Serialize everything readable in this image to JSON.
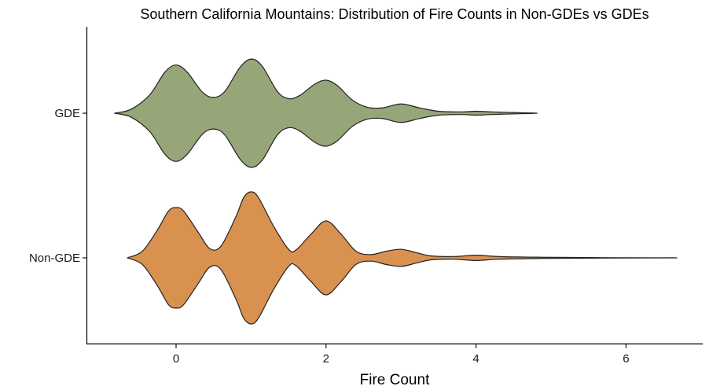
{
  "chart_data": {
    "type": "violin",
    "orientation": "horizontal",
    "title": "Southern California Mountains: Distribution of Fire Counts in Non-GDEs vs GDEs",
    "xlabel": "Fire Count",
    "ylabel": "",
    "xlim": [
      -1.2,
      7.0
    ],
    "x_ticks": [
      0,
      2,
      4,
      6
    ],
    "grid": false,
    "legend": "none",
    "categories": [
      "Non-GDE",
      "GDE"
    ],
    "series": [
      {
        "name": "GDE",
        "color": "#97a678",
        "range": [
          -0.82,
          4.82
        ],
        "profile": [
          [
            -0.82,
            0.0
          ],
          [
            -0.6,
            0.06
          ],
          [
            -0.35,
            0.28
          ],
          [
            -0.15,
            0.62
          ],
          [
            0.0,
            0.73
          ],
          [
            0.15,
            0.62
          ],
          [
            0.35,
            0.32
          ],
          [
            0.5,
            0.24
          ],
          [
            0.65,
            0.33
          ],
          [
            0.85,
            0.69
          ],
          [
            1.0,
            0.82
          ],
          [
            1.15,
            0.71
          ],
          [
            1.35,
            0.33
          ],
          [
            1.5,
            0.22
          ],
          [
            1.65,
            0.27
          ],
          [
            1.85,
            0.44
          ],
          [
            2.0,
            0.5
          ],
          [
            2.15,
            0.42
          ],
          [
            2.35,
            0.2
          ],
          [
            2.55,
            0.09
          ],
          [
            2.75,
            0.08
          ],
          [
            3.0,
            0.14
          ],
          [
            3.25,
            0.08
          ],
          [
            3.5,
            0.03
          ],
          [
            3.8,
            0.02
          ],
          [
            4.0,
            0.03
          ],
          [
            4.2,
            0.02
          ],
          [
            4.5,
            0.01
          ],
          [
            4.82,
            0.0
          ]
        ]
      },
      {
        "name": "Non-GDE",
        "color": "#d9914f",
        "range": [
          -0.65,
          6.68
        ],
        "profile": [
          [
            -0.65,
            0.0
          ],
          [
            -0.45,
            0.1
          ],
          [
            -0.25,
            0.42
          ],
          [
            -0.1,
            0.71
          ],
          [
            0.0,
            0.76
          ],
          [
            0.1,
            0.71
          ],
          [
            0.3,
            0.38
          ],
          [
            0.45,
            0.14
          ],
          [
            0.6,
            0.18
          ],
          [
            0.8,
            0.63
          ],
          [
            0.9,
            0.91
          ],
          [
            1.0,
            1.0
          ],
          [
            1.1,
            0.91
          ],
          [
            1.3,
            0.48
          ],
          [
            1.5,
            0.13
          ],
          [
            1.6,
            0.12
          ],
          [
            1.8,
            0.36
          ],
          [
            2.0,
            0.56
          ],
          [
            2.2,
            0.36
          ],
          [
            2.4,
            0.1
          ],
          [
            2.6,
            0.05
          ],
          [
            2.8,
            0.1
          ],
          [
            3.0,
            0.13
          ],
          [
            3.2,
            0.08
          ],
          [
            3.4,
            0.03
          ],
          [
            3.7,
            0.02
          ],
          [
            4.0,
            0.04
          ],
          [
            4.3,
            0.02
          ],
          [
            4.8,
            0.01
          ],
          [
            5.5,
            0.004
          ],
          [
            6.68,
            0.0
          ]
        ]
      }
    ]
  }
}
